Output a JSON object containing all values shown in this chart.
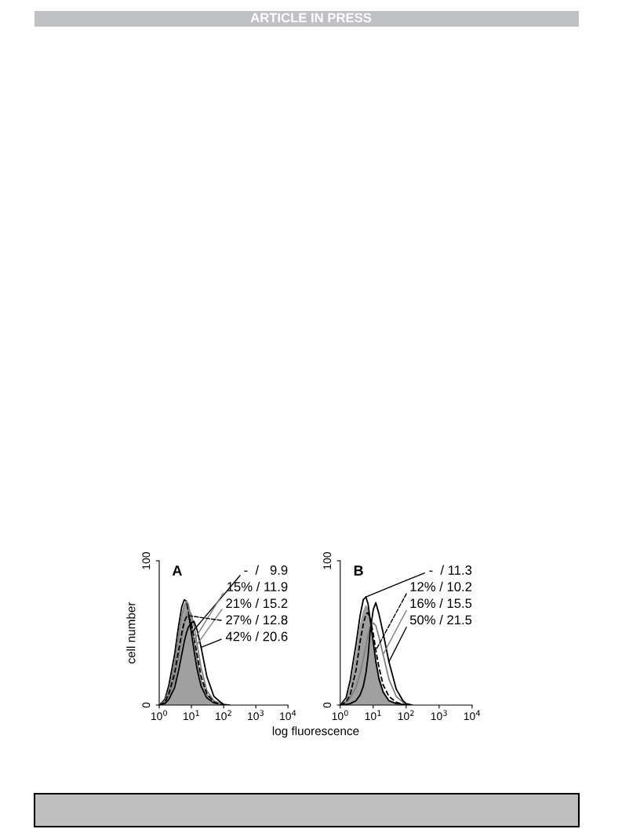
{
  "chart_data": [
    {
      "type": "line",
      "title": "A",
      "xlabel": "log fluorescence",
      "ylabel": "cell number",
      "log": "x",
      "annotations": [
        "ARTICLE IN PRESS"
      ],
      "x": [
        1,
        1.5,
        2,
        3,
        4,
        5,
        6,
        7,
        8,
        10,
        12,
        15,
        20,
        30,
        50,
        80,
        100,
        150
      ],
      "xlim": [
        1,
        10000
      ],
      "xticks": [
        {
          "value": 1,
          "label": "10$^{0}$"
        },
        {
          "value": 10,
          "label": "10$^{1}$"
        },
        {
          "value": 100,
          "label": "10$^{2}$"
        },
        {
          "value": 1000,
          "label": "10$^{3}$"
        },
        {
          "value": 10000,
          "label": "10$^{4}$"
        }
      ],
      "ylim": [
        0,
        100
      ],
      "yticks": [
        0,
        100
      ],
      "series": [
        {
          "type": "area",
          "color": "#a0a0a0",
          "values": [
            0,
            3,
            10,
            30,
            50,
            62,
            68,
            70,
            66,
            55,
            42,
            28,
            15,
            6,
            2,
            0.5,
            0,
            0
          ]
        },
        {
          "name": "-  /   9.9",
          "color": "#000000",
          "line_style": "solid",
          "values": [
            0,
            4,
            14,
            35,
            55,
            68,
            73,
            72,
            65,
            50,
            38,
            25,
            13,
            5,
            1.5,
            0.5,
            0,
            0
          ]
        },
        {
          "name": "15% / 11.9",
          "color": "#808080",
          "line_style": "solid",
          "values": [
            0,
            3,
            10,
            28,
            48,
            62,
            69,
            72,
            70,
            58,
            45,
            31,
            17,
            7,
            2,
            0.5,
            0,
            0
          ]
        },
        {
          "name": "21% / 15.2",
          "color": "#808080",
          "line_style": "solid",
          "values": [
            0,
            2,
            6,
            18,
            33,
            46,
            56,
            62,
            66,
            63,
            55,
            42,
            26,
            10,
            3,
            1,
            0,
            0
          ]
        },
        {
          "name": "27% / 12.8",
          "color": "#000000",
          "line_style": "dashed",
          "values": [
            0,
            2,
            8,
            22,
            38,
            50,
            58,
            61,
            62,
            56,
            47,
            35,
            20,
            8,
            2,
            0.5,
            0,
            0
          ]
        },
        {
          "name": "42% / 20.6",
          "color": "#000000",
          "line_style": "solid",
          "values": [
            0,
            1,
            4,
            12,
            24,
            35,
            44,
            50,
            54,
            57,
            58,
            52,
            40,
            20,
            6,
            2,
            0.5,
            0
          ]
        }
      ],
      "legend": "top right"
    },
    {
      "type": "line",
      "title": "B",
      "log": "x",
      "x": [
        1,
        1.5,
        2,
        3,
        4,
        5,
        6,
        7,
        8,
        10,
        12,
        15,
        20,
        30,
        50,
        80,
        100,
        150
      ],
      "xlim": [
        1,
        10000
      ],
      "xticks": [
        {
          "value": 1,
          "label": "10$^{0}$"
        },
        {
          "value": 10,
          "label": "10$^{1}$"
        },
        {
          "value": 100,
          "label": "10$^{2}$"
        },
        {
          "value": 1000,
          "label": "10$^{3}$"
        },
        {
          "value": 10000,
          "label": "10$^{4}$"
        }
      ],
      "ylim": [
        0,
        100
      ],
      "yticks": [
        0,
        100
      ],
      "series": [
        {
          "type": "area",
          "color": "#a0a0a0",
          "values": [
            0,
            3,
            12,
            35,
            55,
            65,
            69,
            67,
            60,
            45,
            32,
            20,
            10,
            3,
            1,
            0,
            0,
            0
          ]
        },
        {
          "name": "-  / 11.3",
          "color": "#000000",
          "line_style": "solid",
          "values": [
            0,
            5,
            17,
            42,
            62,
            73,
            75,
            70,
            60,
            44,
            30,
            18,
            9,
            3,
            1,
            0.5,
            0,
            0
          ]
        },
        {
          "name": "12% / 10.2",
          "color": "#000000",
          "line_style": "dashed",
          "values": [
            0,
            2,
            7,
            24,
            44,
            56,
            63,
            64,
            60,
            50,
            38,
            26,
            14,
            6,
            2,
            0.5,
            0,
            0
          ]
        },
        {
          "name": "16% / 15.5",
          "color": "#808080",
          "line_style": "solid",
          "values": [
            0,
            2,
            5,
            12,
            22,
            32,
            41,
            49,
            54,
            57,
            55,
            47,
            35,
            18,
            6,
            2,
            0.5,
            0
          ]
        },
        {
          "name": "50% / 21.5",
          "color": "#000000",
          "line_style": "solid",
          "values": [
            0,
            0.5,
            1,
            3,
            7,
            13,
            22,
            34,
            50,
            66,
            71,
            63,
            50,
            30,
            11,
            3,
            1,
            0
          ]
        }
      ],
      "legend": "top right"
    }
  ]
}
